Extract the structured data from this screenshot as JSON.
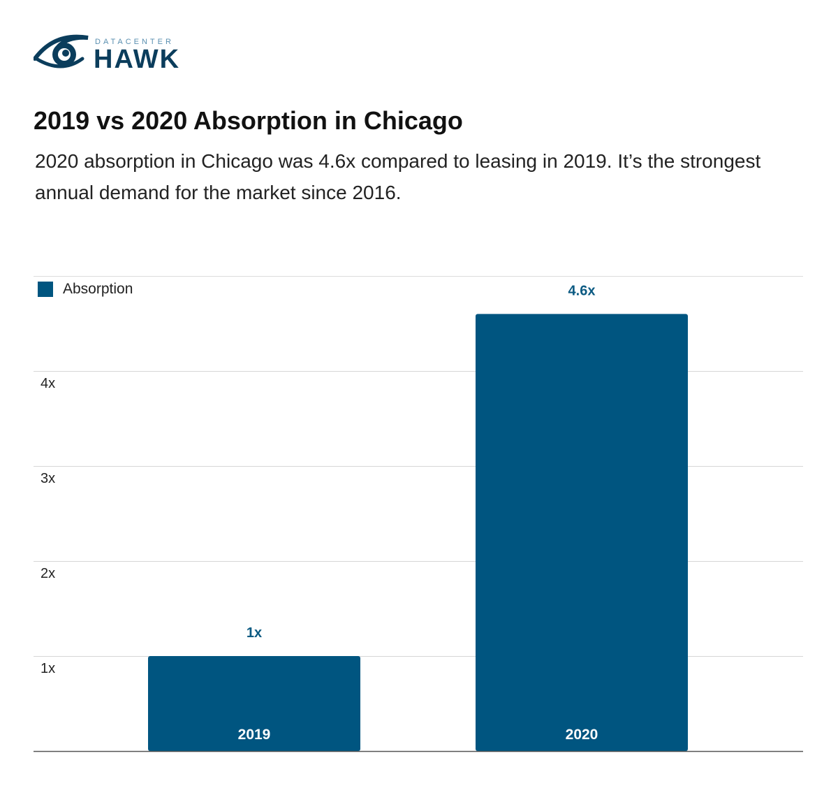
{
  "brand": {
    "small_text": "DATACENTER",
    "big_text": "HAWK",
    "icon": "eye-icon",
    "colors": {
      "dark": "#0b3d5c",
      "light": "#5a8fb0"
    }
  },
  "header": {
    "title": "2019 vs 2020 Absorption in Chicago",
    "subtitle": "2020 absorption in Chicago was 4.6x compared to leasing in 2019. It’s the strongest annual demand for the market since 2016."
  },
  "chart_data": {
    "type": "bar",
    "categories": [
      "2019",
      "2020"
    ],
    "series": [
      {
        "name": "Absorption",
        "values": [
          1,
          4.6
        ],
        "data_labels": [
          "1x",
          "4.6x"
        ]
      }
    ],
    "y_ticks": [
      1,
      2,
      3,
      4
    ],
    "y_tick_labels": [
      "1x",
      "2x",
      "3x",
      "4x"
    ],
    "ylim": [
      0,
      5
    ],
    "grid": true,
    "legend_position": "top-left",
    "bar_color": "#005580",
    "label_color": "#0b5a82"
  }
}
